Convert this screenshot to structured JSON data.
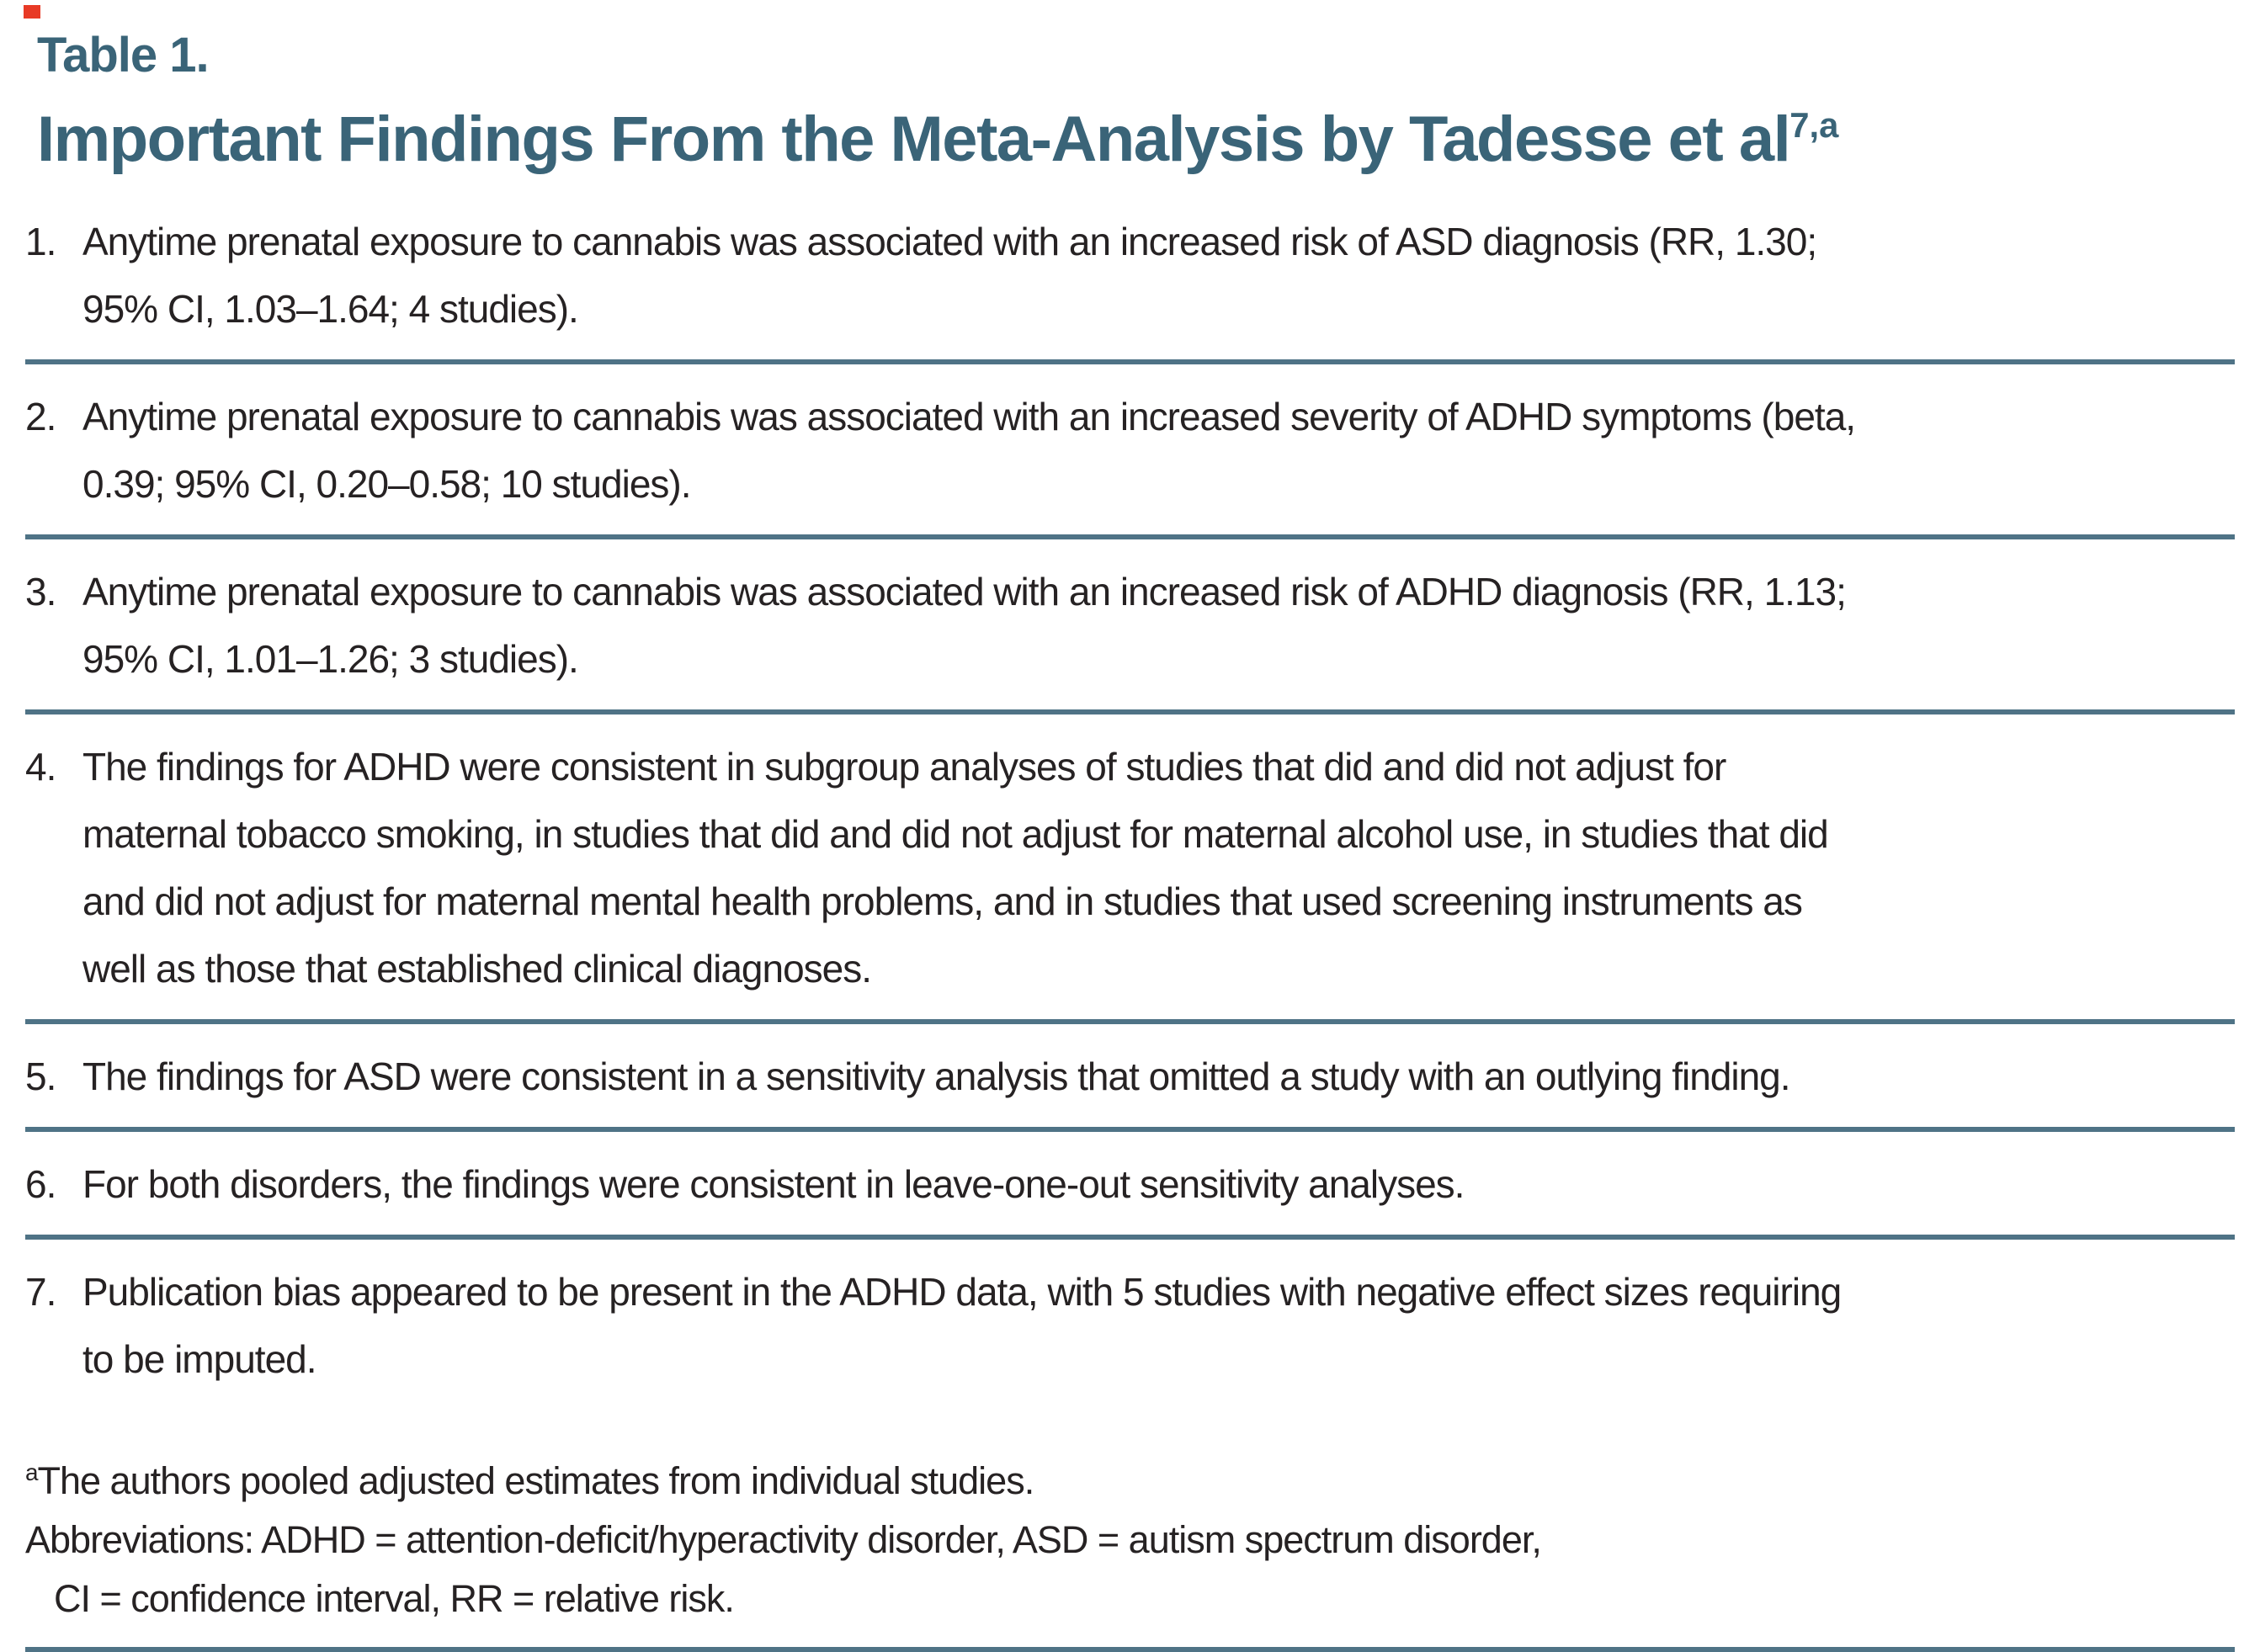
{
  "header": {
    "table_label": "Table 1.",
    "title": "Important Findings From the Meta-Analysis by Tadesse et al",
    "title_superscript": "7,a"
  },
  "items": [
    {
      "number": "1.",
      "lines": [
        "Anytime prenatal exposure to cannabis was associated with an increased risk of ASD diagnosis (RR, 1.30;",
        "95% CI, 1.03–1.64; 4 studies)."
      ]
    },
    {
      "number": "2.",
      "lines": [
        "Anytime prenatal exposure to cannabis was associated with an increased severity of ADHD symptoms (beta,",
        "0.39; 95% CI, 0.20–0.58; 10 studies)."
      ]
    },
    {
      "number": "3.",
      "lines": [
        "Anytime prenatal exposure to cannabis was associated with an increased risk of ADHD diagnosis (RR, 1.13;",
        "95% CI, 1.01–1.26; 3 studies)."
      ]
    },
    {
      "number": "4.",
      "lines": [
        "The findings for ADHD were consistent in subgroup analyses of studies that did and did not adjust for",
        "maternal tobacco smoking, in studies that did and did not adjust for maternal alcohol use, in studies that did",
        "and did not adjust for maternal mental health problems, and in studies that used screening instruments as",
        "well as those that established clinical diagnoses."
      ]
    },
    {
      "number": "5.",
      "lines": [
        "The findings for ASD were consistent in a sensitivity analysis that omitted a study with an outlying finding."
      ]
    },
    {
      "number": "6.",
      "lines": [
        "For both disorders, the findings were consistent in leave-one-out sensitivity analyses."
      ]
    },
    {
      "number": "7.",
      "lines": [
        "Publication bias appeared to be present in the ADHD data, with 5 studies with negative effect sizes requiring",
        "to be imputed."
      ]
    }
  ],
  "footnotes": {
    "marker": "a",
    "note": "The authors pooled adjusted estimates from individual studies.",
    "abbreviations_line1": "Abbreviations: ADHD = attention-deficit/hyperactivity disorder, ASD = autism spectrum disorder,",
    "abbreviations_line2": "CI = confidence interval, RR = relative risk."
  },
  "colors": {
    "accent_teal": "#3a6478",
    "rule_teal": "#4f7386",
    "body_text": "#262223",
    "red_mark": "#e83a26"
  }
}
